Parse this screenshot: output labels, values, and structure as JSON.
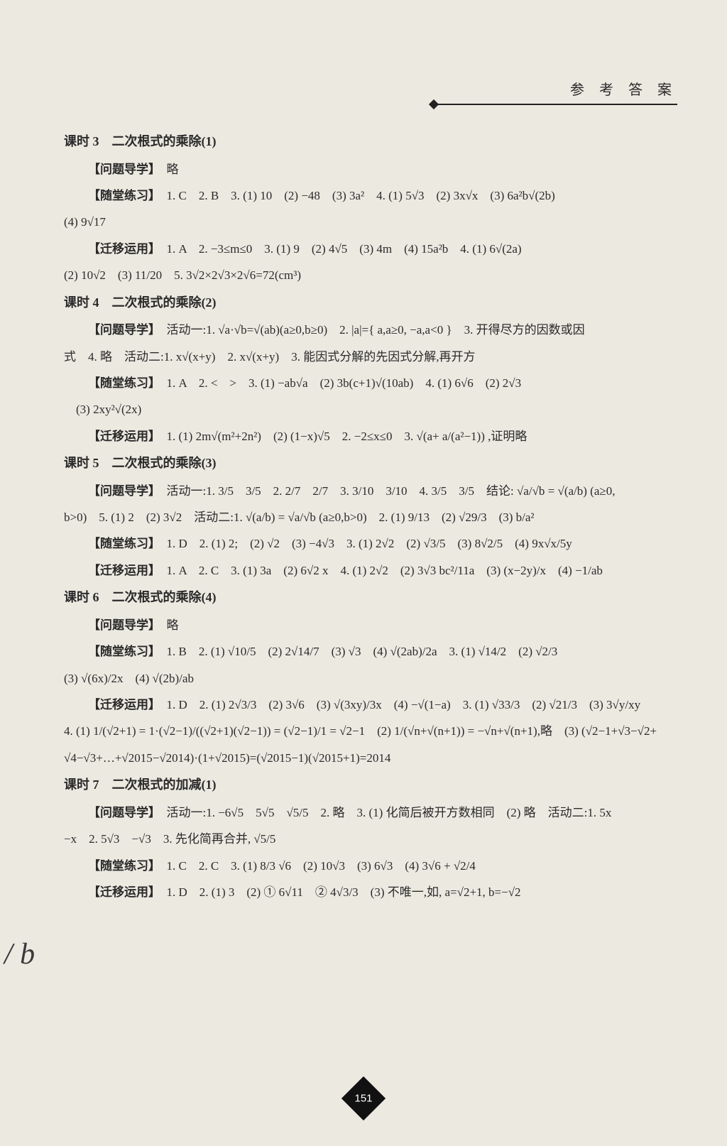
{
  "header": {
    "title": "参 考 答 案"
  },
  "pageNumber": "151",
  "marginMark": "/\nb",
  "lessons": [
    {
      "title": "课时 3　二次根式的乘除(1)",
      "lines": [
        "【问题导学】　略",
        "【随堂练习】　1. C　2. B　3. (1) 10　(2) −48　(3) 3a²　4. (1) 5√3　(2) 3x√x　(3) 6a²b√(2b)",
        "(4) 9√17",
        "【迁移运用】　1. A　2. −3≤m≤0　3. (1) 9　(2) 4√5　(3) 4m　(4) 15a²b　4. (1) 6√(2a)",
        "(2) 10√2　(3) 11/20　5. 3√2×2√3×2√6=72(cm³)"
      ],
      "indents": [
        1,
        1,
        0,
        1,
        0
      ]
    },
    {
      "title": "课时 4　二次根式的乘除(2)",
      "lines": [
        "【问题导学】　活动一:1. √a·√b=√(ab)(a≥0,b≥0)　2. |a|={ a,a≥0, −a,a<0 }　3. 开得尽方的因数或因",
        "式　4. 略　活动二:1. x√(x+y)　2. x√(x+y)　3. 能因式分解的先因式分解,再开方",
        "【随堂练习】　1. A　2. <　>　3. (1) −ab√a　(2) 3b(c+1)√(10ab)　4. (1) 6√6　(2) 2√3",
        "　(3) 2xy²√(2x)",
        "【迁移运用】　1. (1) 2m√(m²+2n²)　(2) (1−x)√5　2. −2≤x≤0　3. √(a+ a/(a²−1)) ,证明略"
      ],
      "indents": [
        1,
        0,
        1,
        0,
        1
      ]
    },
    {
      "title": "课时 5　二次根式的乘除(3)",
      "lines": [
        "【问题导学】　活动一:1. 3/5　3/5　2. 2/7　2/7　3. 3/10　3/10　4. 3/5　3/5　结论: √a/√b = √(a/b) (a≥0,",
        "b>0)　5. (1) 2　(2) 3√2　活动二:1. √(a/b) = √a/√b (a≥0,b>0)　2. (1) 9/13　(2) √29/3　(3) b/a²",
        "【随堂练习】　1. D　2. (1) 2;　(2) √2　(3) −4√3　3. (1) 2√2　(2) √3/5　(3) 8√2/5　(4) 9x√x/5y",
        "【迁移运用】　1. A　2. C　3. (1) 3a　(2) 6√2 x　4. (1) 2√2　(2) 3√3 bc²/11a　(3) (x−2y)/x　(4) −1/ab"
      ],
      "indents": [
        1,
        0,
        1,
        1
      ]
    },
    {
      "title": "课时 6　二次根式的乘除(4)",
      "lines": [
        "【问题导学】　略",
        "【随堂练习】　1. B　2. (1) √10/5　(2) 2√14/7　(3) √3　(4) √(2ab)/2a　3. (1) √14/2　(2) √2/3",
        "(3) √(6x)/2x　(4) √(2b)/ab",
        "【迁移运用】　1. D　2. (1) 2√3/3　(2) 3√6　(3) √(3xy)/3x　(4) −√(1−a)　3. (1) √33/3　(2) √21/3　(3) 3√y/xy",
        "4. (1) 1/(√2+1) = 1·(√2−1)/((√2+1)(√2−1)) = (√2−1)/1 = √2−1　(2) 1/(√n+√(n+1)) = −√n+√(n+1),略　(3) (√2−1+√3−√2+",
        "√4−√3+…+√2015−√2014)·(1+√2015)=(√2015−1)(√2015+1)=2014"
      ],
      "indents": [
        1,
        1,
        0,
        1,
        0,
        0
      ]
    },
    {
      "title": "课时 7　二次根式的加减(1)",
      "lines": [
        "【问题导学】　活动一:1. −6√5　5√5　√5/5　2. 略　3. (1) 化简后被开方数相同　(2) 略　活动二:1. 5x",
        "−x　2. 5√3　−√3　3. 先化简再合并, √5/5",
        "【随堂练习】　1. C　2. C　3. (1) 8/3 √6　(2) 10√3　(3) 6√3　(4) 3√6 + √2/4",
        "【迁移运用】　1. D　2. (1) 3　(2) ① 6√11　② 4√3/3　(3) 不唯一,如, a=√2+1, b=−√2"
      ],
      "indents": [
        1,
        0,
        1,
        1
      ]
    }
  ]
}
